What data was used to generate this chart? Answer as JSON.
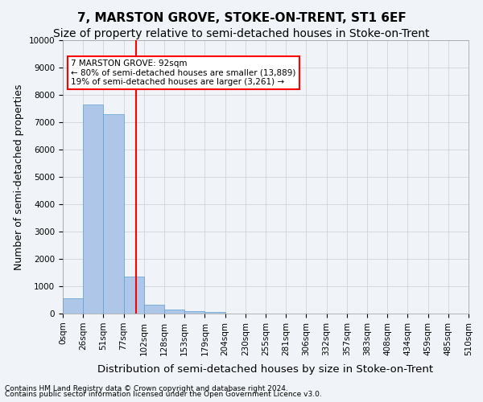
{
  "title": "7, MARSTON GROVE, STOKE-ON-TRENT, ST1 6EF",
  "subtitle": "Size of property relative to semi-detached houses in Stoke-on-Trent",
  "xlabel": "Distribution of semi-detached houses by size in Stoke-on-Trent",
  "ylabel": "Number of semi-detached properties",
  "footnote1": "Contains HM Land Registry data © Crown copyright and database right 2024.",
  "footnote2": "Contains public sector information licensed under the Open Government Licence v3.0.",
  "bar_labels": [
    "0sqm",
    "26sqm",
    "51sqm",
    "77sqm",
    "102sqm",
    "128sqm",
    "153sqm",
    "179sqm",
    "204sqm",
    "230sqm",
    "255sqm",
    "281sqm",
    "306sqm",
    "332sqm",
    "357sqm",
    "383sqm",
    "408sqm",
    "434sqm",
    "459sqm",
    "485sqm",
    "510sqm"
  ],
  "bar_values": [
    550,
    7650,
    7300,
    1350,
    310,
    160,
    100,
    70,
    0,
    0,
    0,
    0,
    0,
    0,
    0,
    0,
    0,
    0,
    0,
    0
  ],
  "bar_color": "#aec6e8",
  "bar_edge_color": "#5a9fd4",
  "ylim": [
    0,
    10000
  ],
  "yticks": [
    0,
    1000,
    2000,
    3000,
    4000,
    5000,
    6000,
    7000,
    8000,
    9000,
    10000
  ],
  "property_size": 92,
  "property_line_x": 3.8,
  "vline_color": "red",
  "annotation_title": "7 MARSTON GROVE: 92sqm",
  "annotation_line1": "← 80% of semi-detached houses are smaller (13,889)",
  "annotation_line2": "19% of semi-detached houses are larger (3,261) →",
  "annotation_box_color": "white",
  "annotation_box_edge": "red",
  "grid_color": "#cccccc",
  "background_color": "#f0f4f8",
  "title_fontsize": 11,
  "subtitle_fontsize": 10,
  "tick_fontsize": 7.5,
  "ylabel_fontsize": 9,
  "xlabel_fontsize": 9.5
}
